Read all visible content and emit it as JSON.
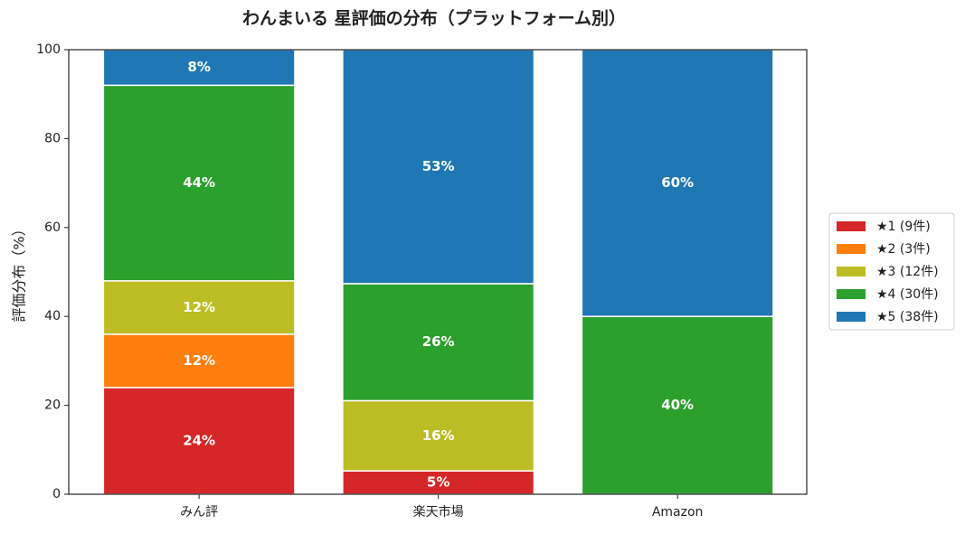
{
  "chart_data": {
    "type": "stacked-bar",
    "title": "わんまいる 星評価の分布（プラットフォーム別）",
    "y_label": "評価分布（%）",
    "categories": [
      "みん評",
      "楽天市場",
      "Amazon"
    ],
    "ylim": [
      0,
      100
    ],
    "yticks": [
      0,
      20,
      40,
      60,
      80,
      100
    ],
    "grid": false,
    "legend": "right",
    "series": [
      {
        "name": "★1 (9件)",
        "color": "#d62728",
        "values": [
          24,
          5.26,
          0
        ],
        "value_labels": [
          "24%",
          "5%",
          null
        ]
      },
      {
        "name": "★2 (3件)",
        "color": "#ff7f0e",
        "values": [
          12,
          0,
          0
        ],
        "value_labels": [
          "12%",
          null,
          null
        ]
      },
      {
        "name": "★3 (12件)",
        "color": "#bcbd22",
        "values": [
          12,
          15.79,
          0
        ],
        "value_labels": [
          "12%",
          "16%",
          null
        ]
      },
      {
        "name": "★4 (30件)",
        "color": "#2ca02c",
        "values": [
          44,
          26.32,
          40
        ],
        "value_labels": [
          "44%",
          "26%",
          "40%"
        ]
      },
      {
        "name": "★5 (38件)",
        "color": "#1f77b4",
        "values": [
          8,
          52.63,
          60
        ],
        "value_labels": [
          "8%",
          "53%",
          "60%"
        ]
      }
    ]
  }
}
